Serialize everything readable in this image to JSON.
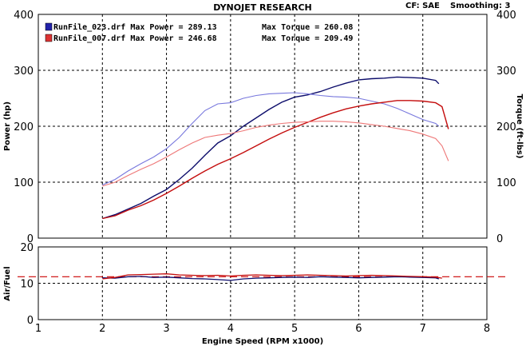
{
  "header": {
    "title": "DYNOJET RESEARCH",
    "cf_label": "CF: SAE",
    "smoothing_label": "Smoothing: 3"
  },
  "legend": [
    {
      "label": "RunFile_023.drf Max Power = 289.13",
      "torque": "Max Torque = 260.08",
      "color": "#1f1f8f"
    },
    {
      "label": "RunFile_007.drf Max Power = 246.68",
      "torque": "Max Torque = 209.49",
      "color": "#cc1111"
    }
  ],
  "colors": {
    "run023_power": "#0d0d6b",
    "run023_torque": "#7777dd",
    "run007_power": "#c40d0d",
    "run007_torque": "#ee7777",
    "target_afr": "#cc0000",
    "grid": "#000000"
  },
  "chart_data": [
    {
      "type": "line",
      "name": "power-torque",
      "ylabel": "Power (hp)",
      "ylabel2": "Torque (ft-lbs)",
      "xlim": [
        1,
        8
      ],
      "ylim": [
        0,
        400
      ],
      "yticks": [
        "0",
        "100",
        "200",
        "300",
        "400"
      ],
      "grid": true,
      "series": [
        {
          "name": "RunFile_023.drf Max Power = 289.13",
          "kind": "power",
          "color_key": "run023_power",
          "x": [
            2.0,
            2.2,
            2.4,
            2.6,
            2.8,
            3.0,
            3.2,
            3.4,
            3.6,
            3.8,
            4.0,
            4.2,
            4.4,
            4.6,
            4.8,
            5.0,
            5.2,
            5.4,
            5.6,
            5.8,
            6.0,
            6.2,
            6.4,
            6.6,
            6.8,
            7.0,
            7.2,
            7.25
          ],
          "y": [
            35,
            42,
            52,
            62,
            75,
            87,
            105,
            125,
            148,
            170,
            183,
            200,
            215,
            230,
            243,
            252,
            256,
            262,
            270,
            277,
            283,
            285,
            286,
            288,
            287,
            286,
            282,
            276
          ]
        },
        {
          "name": "RunFile_023.drf Max Torque = 260.08",
          "kind": "torque",
          "color_key": "run023_torque",
          "x": [
            2.0,
            2.2,
            2.4,
            2.6,
            2.8,
            3.0,
            3.2,
            3.4,
            3.6,
            3.8,
            4.0,
            4.2,
            4.4,
            4.6,
            4.8,
            5.0,
            5.2,
            5.4,
            5.6,
            5.8,
            6.0,
            6.2,
            6.4,
            6.6,
            6.8,
            7.0,
            7.2,
            7.25
          ],
          "y": [
            95,
            105,
            120,
            133,
            145,
            160,
            180,
            205,
            228,
            240,
            242,
            250,
            255,
            258,
            259,
            260,
            258,
            255,
            253,
            252,
            250,
            245,
            240,
            232,
            222,
            212,
            205,
            200
          ]
        },
        {
          "name": "RunFile_007.drf Max Power = 246.68",
          "kind": "power",
          "color_key": "run007_power",
          "x": [
            2.0,
            2.2,
            2.4,
            2.6,
            2.8,
            3.0,
            3.2,
            3.4,
            3.6,
            3.8,
            4.0,
            4.2,
            4.4,
            4.6,
            4.8,
            5.0,
            5.2,
            5.4,
            5.6,
            5.8,
            6.0,
            6.2,
            6.4,
            6.6,
            6.8,
            7.0,
            7.2,
            7.3,
            7.4
          ],
          "y": [
            35,
            40,
            50,
            58,
            68,
            80,
            93,
            107,
            120,
            132,
            142,
            153,
            165,
            177,
            188,
            198,
            207,
            216,
            224,
            231,
            236,
            240,
            243,
            246,
            246,
            245,
            242,
            235,
            195
          ]
        },
        {
          "name": "RunFile_007.drf Max Torque = 209.49",
          "kind": "torque",
          "color_key": "run007_torque",
          "x": [
            2.0,
            2.2,
            2.4,
            2.6,
            2.8,
            3.0,
            3.2,
            3.4,
            3.6,
            3.8,
            4.0,
            4.2,
            4.4,
            4.6,
            4.8,
            5.0,
            5.2,
            5.4,
            5.6,
            5.8,
            6.0,
            6.2,
            6.4,
            6.6,
            6.8,
            7.0,
            7.2,
            7.3,
            7.4
          ],
          "y": [
            93,
            100,
            112,
            123,
            133,
            145,
            158,
            170,
            180,
            184,
            187,
            192,
            198,
            202,
            205,
            207,
            208,
            209,
            209,
            208,
            206,
            203,
            200,
            196,
            192,
            186,
            178,
            165,
            138
          ]
        }
      ]
    },
    {
      "type": "line",
      "name": "air-fuel",
      "ylabel": "Air/Fuel",
      "xlabel": "Engine Speed (RPM x1000)",
      "xlim": [
        1,
        8
      ],
      "ylim": [
        0,
        20
      ],
      "xticks": [
        "1",
        "2",
        "3",
        "4",
        "5",
        "6",
        "7",
        "8"
      ],
      "yticks": [
        "0",
        "10",
        "20"
      ],
      "target_afr": 11.8,
      "grid": true,
      "series": [
        {
          "name": "RunFile_023.drf",
          "color_key": "run023_power",
          "x": [
            2.0,
            2.2,
            2.4,
            2.6,
            2.8,
            3.0,
            3.2,
            3.4,
            3.6,
            3.8,
            4.0,
            4.2,
            4.4,
            4.6,
            4.8,
            5.0,
            5.2,
            5.4,
            5.6,
            5.8,
            6.0,
            6.2,
            6.4,
            6.6,
            6.8,
            7.0,
            7.2,
            7.25
          ],
          "y": [
            11.5,
            11.4,
            11.8,
            11.9,
            11.6,
            11.7,
            11.5,
            11.3,
            11.2,
            11.0,
            10.8,
            11.2,
            11.4,
            11.5,
            11.6,
            11.7,
            11.6,
            11.8,
            11.7,
            11.6,
            11.5,
            11.6,
            11.7,
            11.8,
            11.7,
            11.6,
            11.5,
            11.2
          ]
        },
        {
          "name": "RunFile_007.drf",
          "color_key": "run007_power",
          "x": [
            2.0,
            2.2,
            2.4,
            2.6,
            2.8,
            3.0,
            3.2,
            3.4,
            3.6,
            3.8,
            4.0,
            4.2,
            4.4,
            4.6,
            4.8,
            5.0,
            5.2,
            5.4,
            5.6,
            5.8,
            6.0,
            6.2,
            6.4,
            6.6,
            6.8,
            7.0,
            7.2,
            7.3
          ],
          "y": [
            11.2,
            11.6,
            12.3,
            12.4,
            12.5,
            12.6,
            12.3,
            12.2,
            12.1,
            12.2,
            12.0,
            12.2,
            12.3,
            12.2,
            12.1,
            12.2,
            12.3,
            12.2,
            12.1,
            12.0,
            12.1,
            12.2,
            12.1,
            12.0,
            11.9,
            11.8,
            11.7,
            11.4
          ]
        }
      ]
    }
  ]
}
